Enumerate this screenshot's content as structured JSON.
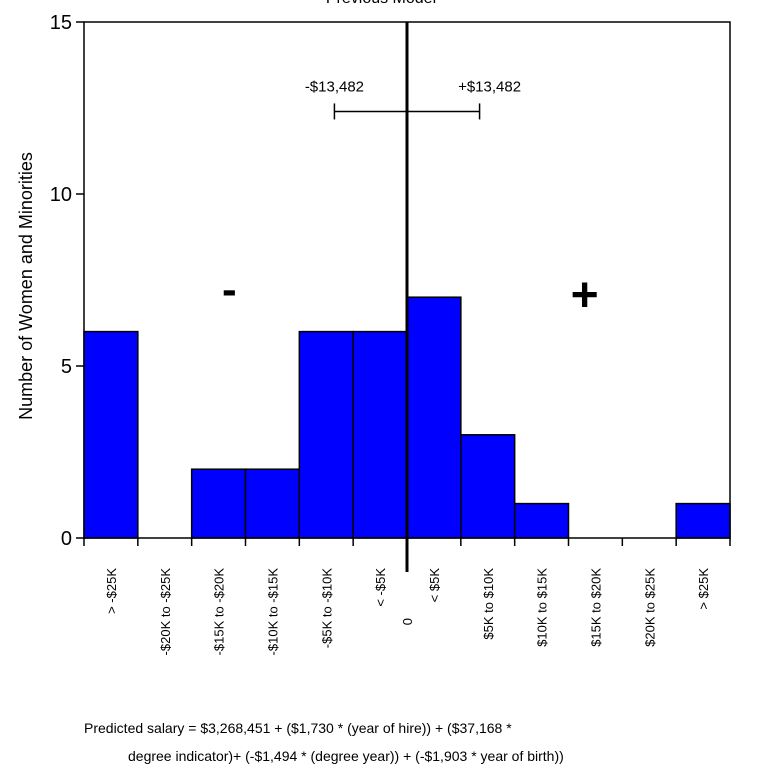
{
  "chart_data": {
    "type": "bar",
    "title": "Previous Model",
    "ylabel": "Number of Women and Minorities",
    "xlabel": "",
    "ylim": [
      0,
      15
    ],
    "yticks": [
      0,
      5,
      10,
      15
    ],
    "categories": [
      "> -$25K",
      "-$20K to -$25K",
      "-$15K to -$20K",
      "-$10K to -$15K",
      "-$5K to -$10K",
      "< -$5K",
      "< $5K",
      "$5K to $10K",
      "$10K to $15K",
      "$15K to $20K",
      "$20K to $25K",
      "> $25K"
    ],
    "values": [
      6,
      0,
      2,
      2,
      6,
      6,
      7,
      3,
      1,
      0,
      0,
      1
    ],
    "zero_label": "0",
    "bar_color": "#0000ff",
    "interval": {
      "low_label": "-$13,482",
      "high_label": "+$13,482",
      "low": -13482,
      "high": 13482,
      "y": 12.4
    },
    "region_labels": {
      "negative": "-",
      "positive": "+"
    },
    "grid": false,
    "legend": "none"
  },
  "formula": {
    "line1": "Predicted salary = $3,268,451 + ($1,730 * (year of hire)) +  ($37,168 *",
    "line2": "degree indicator)+ (-$1,494 *  (degree year)) + (-$1,903 * year of birth))"
  }
}
